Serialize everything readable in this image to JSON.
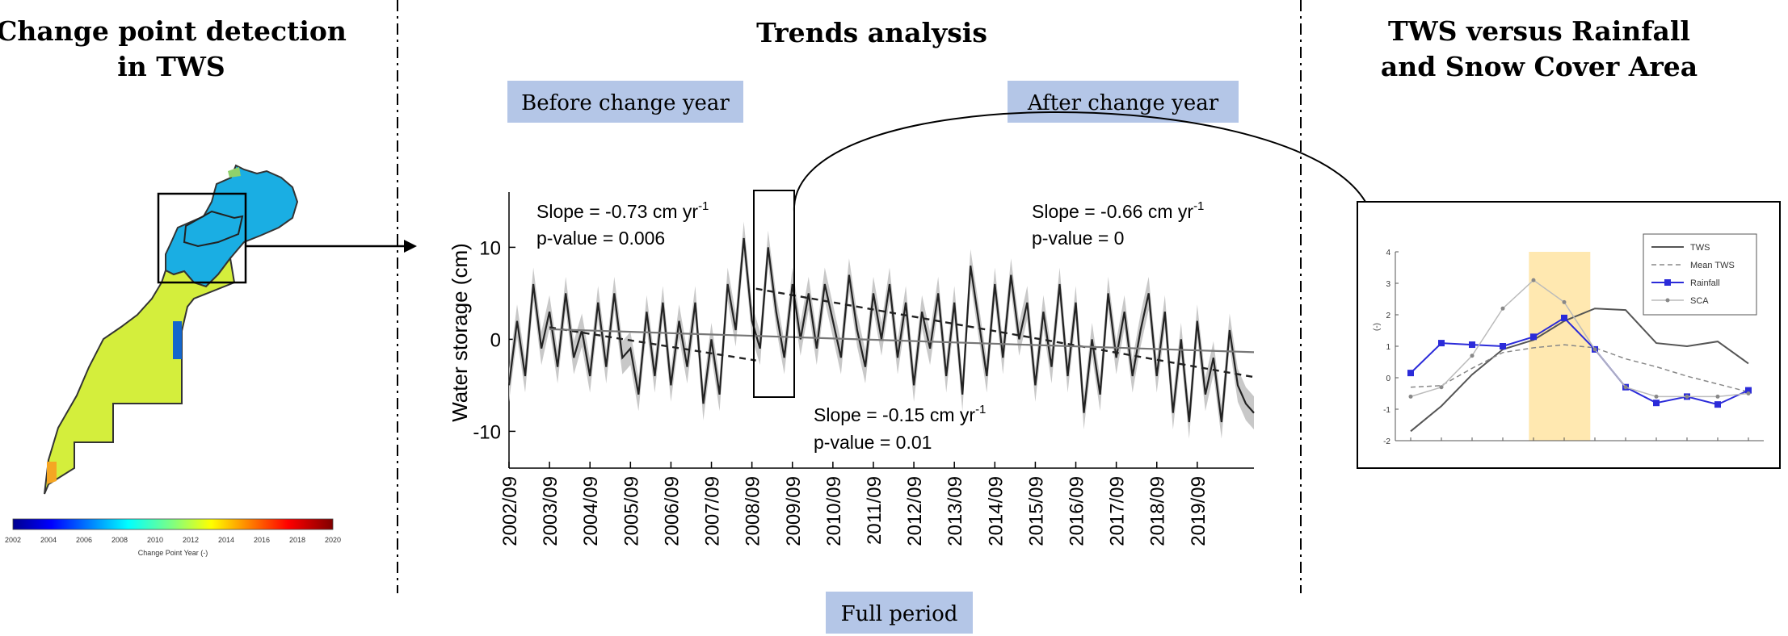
{
  "panels": {
    "left_title": [
      "Change point detection",
      "in TWS"
    ],
    "center_title": "Trends analysis",
    "right_title": [
      "TWS versus Rainfall",
      "and Snow Cover Area"
    ]
  },
  "labels": {
    "before": "Before change year",
    "after": "After change year",
    "full": "Full period"
  },
  "annotations": {
    "before_slope": "Slope = -0.73 cm yr",
    "before_p": "p-value = 0.006",
    "after_slope": "Slope = -0.66 cm yr",
    "after_p": "p-value = 0",
    "full_slope": "Slope = -0.15 cm yr",
    "full_p": "p-value = 0.01",
    "unit_exp": "-1"
  },
  "colorbar": {
    "ticks": [
      "2002",
      "2004",
      "2006",
      "2008",
      "2010",
      "2012",
      "2014",
      "2016",
      "2018",
      "2020"
    ],
    "label": "Change Point Year (-)"
  },
  "colors": {
    "label_box": "#b4c6e7",
    "map_blue": "#1aaee3",
    "map_yellow": "#d4ee3c",
    "highlight": "#ffe8b0",
    "rain": "#2b2bd9"
  },
  "chart_data": [
    {
      "type": "line",
      "ylabel": "Water storage (cm)",
      "ylim": [
        -14,
        16
      ],
      "yticks": [
        -10,
        0,
        10
      ],
      "xticks": [
        "2002/09",
        "2003/09",
        "2004/09",
        "2005/09",
        "2006/09",
        "2007/09",
        "2008/09",
        "2009/09",
        "2010/09",
        "2011/09",
        "2012/09",
        "2013/09",
        "2014/09",
        "2015/09",
        "2016/09",
        "2017/09",
        "2018/09",
        "2019/09"
      ],
      "x_range": [
        2002.7,
        2021.1
      ],
      "series": [
        {
          "x": [
            2002.7,
            2002.9,
            2003.1,
            2003.3,
            2003.5,
            2003.7,
            2003.9,
            2004.1,
            2004.3,
            2004.5,
            2004.7,
            2004.9,
            2005.1,
            2005.3,
            2005.5,
            2005.7,
            2005.9,
            2006.1,
            2006.3,
            2006.5,
            2006.7,
            2006.9,
            2007.1,
            2007.3,
            2007.5,
            2007.7,
            2007.9,
            2008.1,
            2008.3,
            2008.5,
            2008.7,
            2008.9,
            2009.1,
            2009.3,
            2009.5,
            2009.7,
            2009.9,
            2010.1,
            2010.3,
            2010.5,
            2010.7,
            2010.9,
            2011.1,
            2011.3,
            2011.5,
            2011.7,
            2011.9,
            2012.1,
            2012.3,
            2012.5,
            2012.7,
            2012.9,
            2013.1,
            2013.3,
            2013.5,
            2013.7,
            2013.9,
            2014.1,
            2014.3,
            2014.5,
            2014.7,
            2014.9,
            2015.1,
            2015.3,
            2015.5,
            2015.7,
            2015.9,
            2016.1,
            2016.3,
            2016.5,
            2016.7,
            2016.9,
            2017.1,
            2017.3,
            2017.5,
            2017.7,
            2017.9,
            2018.1,
            2018.3,
            2018.5,
            2018.7,
            2018.9,
            2019.1,
            2019.3,
            2019.5,
            2019.7,
            2019.9,
            2020.1,
            2020.3,
            2020.5,
            2020.7,
            2020.9,
            2021.1
          ],
          "values": [
            -5,
            2,
            -4,
            6,
            -1,
            3,
            -3,
            5,
            -2,
            1,
            -4,
            4,
            -3,
            5,
            -2,
            -1,
            -6,
            3,
            -4,
            4,
            -5,
            2,
            -3,
            4,
            -7,
            0,
            -6,
            6,
            1,
            11,
            2,
            -1,
            10,
            3,
            -2,
            6,
            0,
            5,
            -1,
            6,
            2,
            -2,
            7,
            1,
            -3,
            5,
            0,
            6,
            -2,
            4,
            -5,
            3,
            -1,
            5,
            -4,
            4,
            -6,
            8,
            2,
            -4,
            6,
            -2,
            7,
            0,
            4,
            -5,
            3,
            -3,
            6,
            -4,
            4,
            -8,
            0,
            -6,
            5,
            -2,
            3,
            -4,
            1,
            5,
            -4,
            3,
            -8,
            0,
            -9,
            2,
            -6,
            -2,
            -9,
            1,
            -5,
            -7,
            -8
          ],
          "name": ""
        }
      ]
    },
    {
      "type": "line",
      "ylim": [
        -2,
        4
      ],
      "yticks": [
        -2,
        -1,
        0,
        1,
        2,
        3,
        4
      ],
      "ylabel": "(-)",
      "series": [
        {
          "name": "TWS",
          "values": [
            -1.7,
            -0.9,
            0.1,
            0.9,
            1.2,
            1.8,
            2.2,
            2.15,
            1.1,
            1.0,
            1.15,
            0.45
          ]
        },
        {
          "name": "Mean TWS",
          "values": [
            -0.3,
            -0.25,
            0.3,
            0.8,
            0.95,
            1.05,
            0.95,
            0.6,
            0.35,
            0.05,
            -0.2,
            -0.45
          ]
        },
        {
          "name": "Rainfall",
          "values": [
            0.15,
            1.1,
            1.05,
            1.0,
            1.3,
            1.9,
            0.9,
            -0.3,
            -0.8,
            -0.6,
            -0.85,
            -0.4
          ]
        },
        {
          "name": "SCA",
          "values": [
            -0.6,
            -0.3,
            0.7,
            2.2,
            3.1,
            2.4,
            0.9,
            -0.3,
            -0.6,
            -0.6,
            -0.6,
            -0.5
          ]
        }
      ]
    }
  ]
}
